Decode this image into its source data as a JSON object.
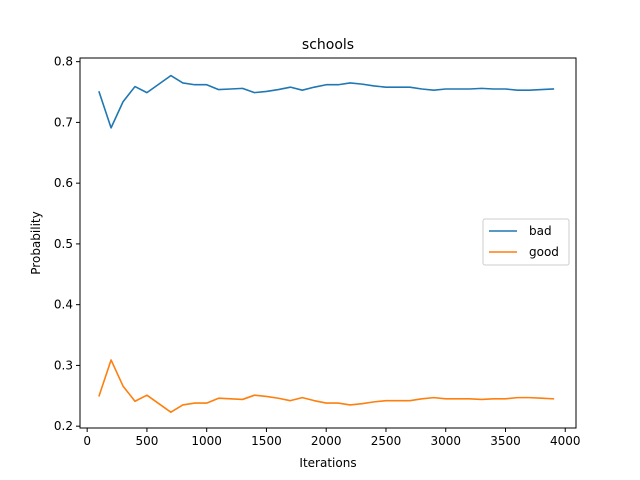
{
  "chart_data": {
    "type": "line",
    "title": "schools",
    "xlabel": "Iterations",
    "ylabel": "Probability",
    "xlim": [
      -60,
      4090
    ],
    "ylim": [
      0.197,
      0.806
    ],
    "xticks": [
      0,
      500,
      1000,
      1500,
      2000,
      2500,
      3000,
      3500,
      4000
    ],
    "yticks": [
      0.2,
      0.3,
      0.4,
      0.5,
      0.6,
      0.7,
      0.8
    ],
    "grid": false,
    "legend": "center-right",
    "x": [
      100,
      200,
      300,
      400,
      500,
      600,
      700,
      800,
      900,
      1000,
      1100,
      1200,
      1300,
      1400,
      1500,
      1600,
      1700,
      1800,
      1900,
      2000,
      2100,
      2200,
      2300,
      2400,
      2500,
      2600,
      2700,
      2800,
      2900,
      3000,
      3100,
      3200,
      3300,
      3400,
      3500,
      3600,
      3700,
      3800,
      3900
    ],
    "series": [
      {
        "name": "bad",
        "color": "#1f77b4",
        "values": [
          0.75,
          0.691,
          0.734,
          0.759,
          0.749,
          0.763,
          0.777,
          0.765,
          0.762,
          0.762,
          0.754,
          0.755,
          0.756,
          0.749,
          0.751,
          0.754,
          0.758,
          0.753,
          0.758,
          0.762,
          0.762,
          0.765,
          0.763,
          0.76,
          0.758,
          0.758,
          0.758,
          0.755,
          0.753,
          0.755,
          0.755,
          0.755,
          0.756,
          0.755,
          0.755,
          0.753,
          0.753,
          0.754,
          0.755
        ]
      },
      {
        "name": "good",
        "color": "#ff7f0e",
        "values": [
          0.25,
          0.309,
          0.266,
          0.241,
          0.251,
          0.237,
          0.223,
          0.235,
          0.238,
          0.238,
          0.246,
          0.245,
          0.244,
          0.251,
          0.249,
          0.246,
          0.242,
          0.247,
          0.242,
          0.238,
          0.238,
          0.235,
          0.237,
          0.24,
          0.242,
          0.242,
          0.242,
          0.245,
          0.247,
          0.245,
          0.245,
          0.245,
          0.244,
          0.245,
          0.245,
          0.247,
          0.247,
          0.246,
          0.245
        ]
      }
    ]
  }
}
